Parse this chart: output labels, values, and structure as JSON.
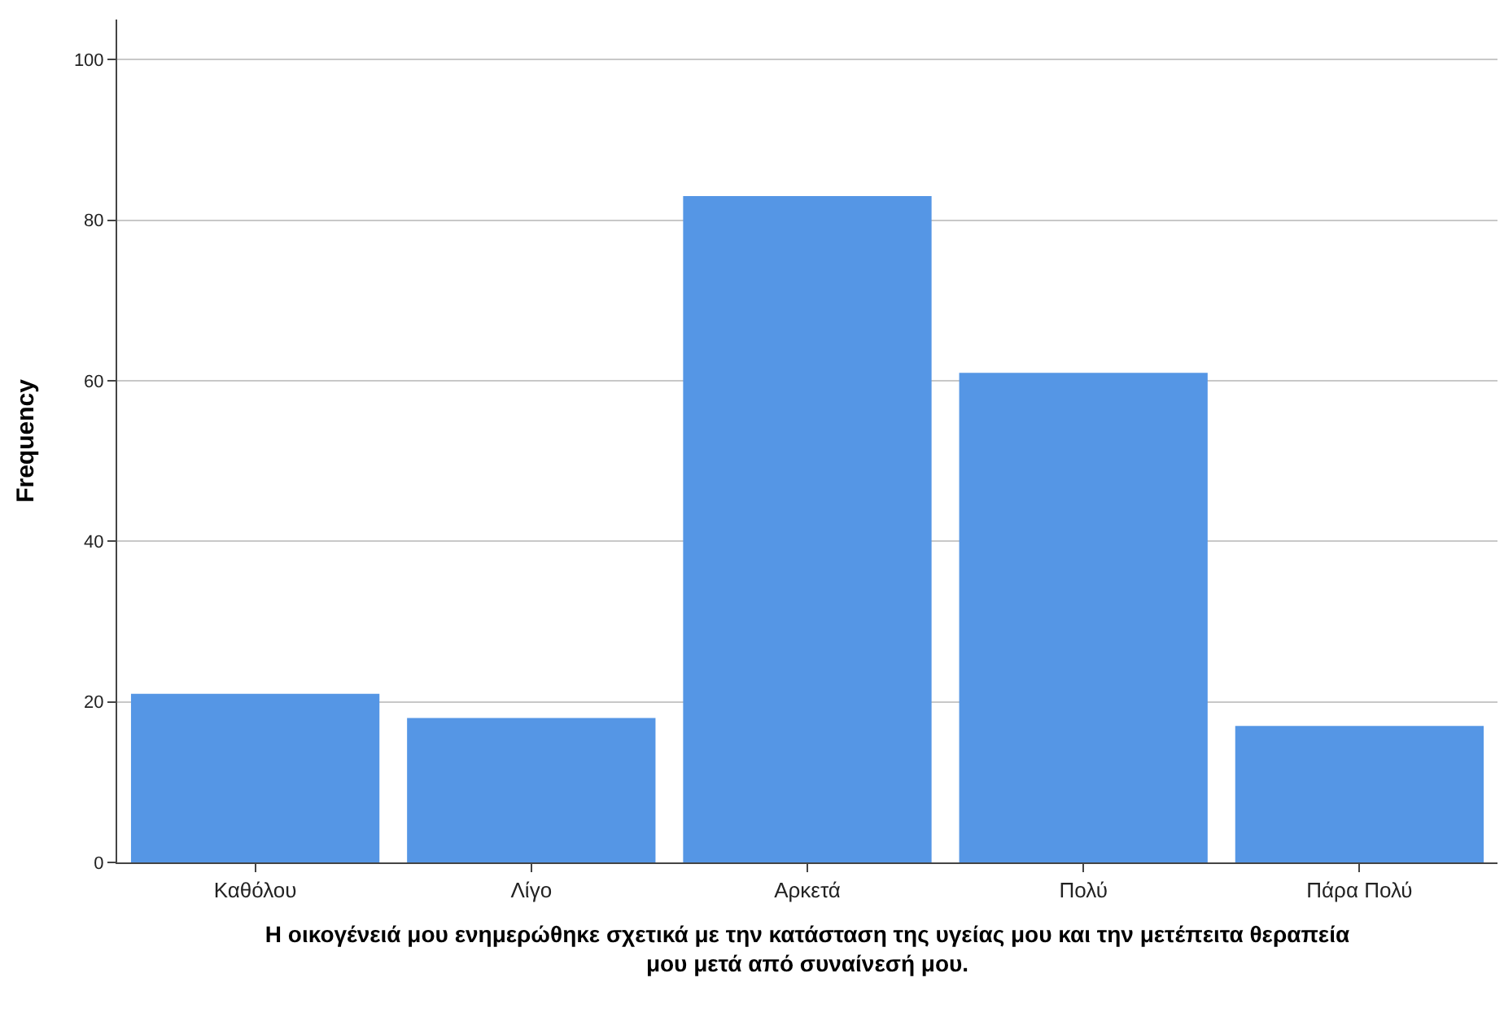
{
  "chart_data": {
    "type": "bar",
    "categories": [
      "Καθόλου",
      "Λίγο",
      "Αρκετά",
      "Πολύ",
      "Πάρα Πολύ"
    ],
    "values": [
      21,
      18,
      83,
      61,
      17
    ],
    "color": "#5596e5",
    "xlabel": "Η οικογένειά μου ενημερώθηκε σχετικά με την κατάσταση της υγείας μου και την μετέπειτα θεραπεία μου μετά από συναίνεσή μου.",
    "ylabel": "Frequency",
    "ylim": [
      0,
      105
    ],
    "yticks": [
      0,
      20,
      40,
      60,
      80,
      100
    ],
    "grid": "y"
  }
}
